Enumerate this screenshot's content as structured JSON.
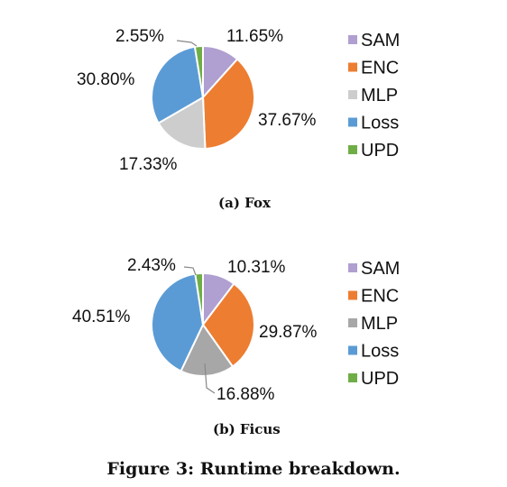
{
  "colors": {
    "SAM": "#b09fd1",
    "ENC": "#ed7d31",
    "MLP_fox": "#cdcdcd",
    "MLP_ficus": "#a7a7a7",
    "Loss": "#5b9bd5",
    "UPD": "#70ad47"
  },
  "chart_data": [
    {
      "type": "pie",
      "title": "(a) Fox",
      "categories": [
        "SAM",
        "ENC",
        "MLP",
        "Loss",
        "UPD"
      ],
      "values": [
        11.65,
        37.67,
        17.33,
        30.8,
        2.55
      ],
      "labels": [
        "11.65%",
        "37.67%",
        "17.33%",
        "30.80%",
        "2.55%"
      ],
      "legend": [
        "SAM",
        "ENC",
        "MLP",
        "Loss",
        "UPD"
      ],
      "legend_position": "right"
    },
    {
      "type": "pie",
      "title": "(b) Ficus",
      "categories": [
        "SAM",
        "ENC",
        "MLP",
        "Loss",
        "UPD"
      ],
      "values": [
        10.31,
        29.87,
        16.88,
        40.51,
        2.43
      ],
      "labels": [
        "10.31%",
        "29.87%",
        "16.88%",
        "40.51%",
        "2.43%"
      ],
      "legend": [
        "SAM",
        "ENC",
        "MLP",
        "Loss",
        "UPD"
      ],
      "legend_position": "right"
    }
  ],
  "caption": "Figure 3: Runtime breakdown."
}
